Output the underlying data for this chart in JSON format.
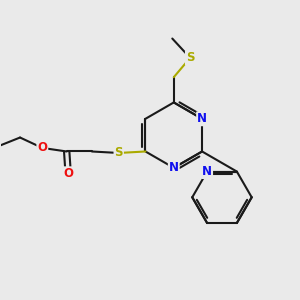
{
  "bg_color": "#eaeaea",
  "bond_color": "#1a1a1a",
  "N_color": "#1010ee",
  "O_color": "#ee1010",
  "S_color": "#aaaa00",
  "line_width": 1.5,
  "font_size_atom": 8.5,
  "fig_width": 3.0,
  "fig_height": 3.0,
  "xlim": [
    0,
    10
  ],
  "ylim": [
    0,
    10
  ]
}
